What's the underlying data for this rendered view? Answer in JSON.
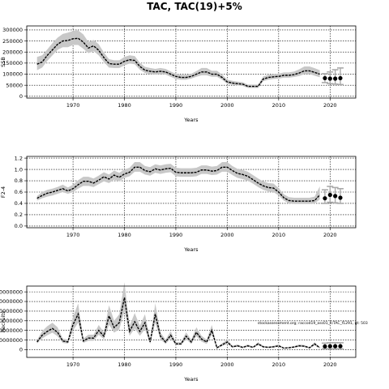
{
  "figure": {
    "title": "TAC, TAC(19)+5%",
    "annotation": "stockassessment.org; raccod19_ass01_fcTAC_f1291, gt: 503"
  },
  "colors": {
    "ribbon": "#c8c8c8",
    "line": "#000000",
    "grid": "#000000",
    "forecast_band": "#aaaaaa"
  },
  "chart_data": [
    {
      "type": "line",
      "title": "",
      "xlabel": "Years",
      "ylabel": "SSB",
      "xlim": [
        1961,
        2025
      ],
      "ylim": [
        -8000,
        318000
      ],
      "grid": true,
      "xticks": [
        1970,
        1980,
        1990,
        2000,
        2010,
        2020
      ],
      "yticks": [
        0,
        50000,
        100000,
        150000,
        200000,
        250000,
        300000
      ],
      "ytick_labels": [
        "0",
        "50000",
        "100000",
        "150000",
        "200000",
        "250000",
        "300000"
      ],
      "x": [
        1963,
        1964,
        1965,
        1966,
        1967,
        1968,
        1969,
        1970,
        1971,
        1972,
        1973,
        1974,
        1975,
        1976,
        1977,
        1978,
        1979,
        1980,
        1981,
        1982,
        1983,
        1984,
        1985,
        1986,
        1987,
        1988,
        1989,
        1990,
        1991,
        1992,
        1993,
        1994,
        1995,
        1996,
        1997,
        1998,
        1999,
        2000,
        2001,
        2002,
        2003,
        2004,
        2005,
        2006,
        2007,
        2008,
        2009,
        2010,
        2011,
        2012,
        2013,
        2014,
        2015,
        2016,
        2017,
        2018
      ],
      "estimate": [
        145000,
        155000,
        185000,
        210000,
        235000,
        250000,
        252000,
        260000,
        262000,
        245000,
        218000,
        228000,
        208000,
        175000,
        148000,
        145000,
        145000,
        158000,
        165000,
        162000,
        135000,
        118000,
        113000,
        110000,
        113000,
        110000,
        100000,
        90000,
        85000,
        85000,
        90000,
        100000,
        110000,
        110000,
        100000,
        100000,
        85000,
        65000,
        60000,
        57000,
        55000,
        45000,
        45000,
        45000,
        78000,
        85000,
        88000,
        90000,
        95000,
        95000,
        98000,
        105000,
        115000,
        115000,
        108000,
        100000
      ],
      "lower": [
        118000,
        130000,
        160000,
        185000,
        210000,
        222000,
        222000,
        232000,
        232000,
        215000,
        195000,
        205000,
        185000,
        155000,
        130000,
        128000,
        128000,
        140000,
        148000,
        145000,
        120000,
        105000,
        100000,
        98000,
        100000,
        98000,
        88000,
        78000,
        75000,
        75000,
        80000,
        88000,
        95000,
        95000,
        88000,
        88000,
        75000,
        56000,
        52000,
        49000,
        47000,
        38000,
        38000,
        38000,
        68000,
        75000,
        78000,
        80000,
        84000,
        84000,
        87000,
        92000,
        100000,
        100000,
        93000,
        86000
      ],
      "upper": [
        178000,
        185000,
        212000,
        240000,
        265000,
        282000,
        288000,
        295000,
        298000,
        280000,
        245000,
        255000,
        235000,
        198000,
        168000,
        163000,
        163000,
        178000,
        185000,
        182000,
        152000,
        133000,
        128000,
        124000,
        128000,
        124000,
        112000,
        102000,
        97000,
        97000,
        102000,
        114000,
        128000,
        128000,
        115000,
        115000,
        98000,
        75000,
        70000,
        66000,
        64000,
        53000,
        53000,
        53000,
        90000,
        97000,
        100000,
        102000,
        108000,
        108000,
        112000,
        122000,
        135000,
        135000,
        127000,
        118000
      ],
      "forecast": {
        "x": [
          2019,
          2020,
          2021,
          2022
        ],
        "median": [
          82000,
          80000,
          80000,
          82000
        ],
        "low": [
          62000,
          57000,
          55000,
          53000
        ],
        "high": [
          102000,
          110000,
          120000,
          128000
        ]
      }
    },
    {
      "type": "line",
      "title": "",
      "xlabel": "Years",
      "ylabel": "F2-4",
      "xlim": [
        1961,
        2025
      ],
      "ylim": [
        -0.03,
        1.23
      ],
      "grid": true,
      "xticks": [
        1970,
        1980,
        1990,
        2000,
        2010,
        2020
      ],
      "yticks": [
        0,
        0.2,
        0.4,
        0.6,
        0.8,
        1.0,
        1.2
      ],
      "ytick_labels": [
        "0.0",
        "0.2",
        "0.4",
        "0.6",
        "0.8",
        "1.0",
        "1.2"
      ],
      "x": [
        1963,
        1964,
        1965,
        1966,
        1967,
        1968,
        1969,
        1970,
        1971,
        1972,
        1973,
        1974,
        1975,
        1976,
        1977,
        1978,
        1979,
        1980,
        1981,
        1982,
        1983,
        1984,
        1985,
        1986,
        1987,
        1988,
        1989,
        1990,
        1991,
        1992,
        1993,
        1994,
        1995,
        1996,
        1997,
        1998,
        1999,
        2000,
        2001,
        2002,
        2003,
        2004,
        2005,
        2006,
        2007,
        2008,
        2009,
        2010,
        2011,
        2012,
        2013,
        2014,
        2015,
        2016,
        2017,
        2018
      ],
      "estimate": [
        0.49,
        0.54,
        0.58,
        0.6,
        0.63,
        0.66,
        0.62,
        0.66,
        0.73,
        0.79,
        0.79,
        0.76,
        0.81,
        0.87,
        0.83,
        0.9,
        0.86,
        0.92,
        0.95,
        1.04,
        1.04,
        0.98,
        0.96,
        1.01,
        0.99,
        1.01,
        1.02,
        0.95,
        0.94,
        0.94,
        0.94,
        0.95,
        0.99,
        0.99,
        0.97,
        0.98,
        1.04,
        1.04,
        0.98,
        0.93,
        0.91,
        0.88,
        0.82,
        0.76,
        0.71,
        0.68,
        0.67,
        0.6,
        0.5,
        0.45,
        0.44,
        0.44,
        0.44,
        0.44,
        0.45,
        0.55
      ],
      "lower": [
        0.45,
        0.49,
        0.52,
        0.54,
        0.57,
        0.6,
        0.57,
        0.6,
        0.66,
        0.71,
        0.71,
        0.69,
        0.74,
        0.79,
        0.76,
        0.82,
        0.79,
        0.85,
        0.88,
        0.96,
        0.96,
        0.91,
        0.89,
        0.94,
        0.92,
        0.94,
        0.95,
        0.88,
        0.87,
        0.87,
        0.87,
        0.88,
        0.92,
        0.92,
        0.9,
        0.91,
        0.96,
        0.96,
        0.9,
        0.85,
        0.83,
        0.8,
        0.75,
        0.69,
        0.64,
        0.61,
        0.6,
        0.54,
        0.45,
        0.4,
        0.39,
        0.39,
        0.39,
        0.39,
        0.4,
        0.47
      ],
      "upper": [
        0.53,
        0.6,
        0.64,
        0.66,
        0.69,
        0.73,
        0.68,
        0.73,
        0.81,
        0.87,
        0.87,
        0.84,
        0.89,
        0.95,
        0.91,
        0.98,
        0.94,
        1.0,
        1.03,
        1.13,
        1.13,
        1.06,
        1.04,
        1.09,
        1.07,
        1.09,
        1.1,
        1.03,
        1.02,
        1.02,
        1.02,
        1.03,
        1.07,
        1.07,
        1.05,
        1.06,
        1.13,
        1.13,
        1.06,
        1.01,
        0.99,
        0.96,
        0.9,
        0.84,
        0.79,
        0.76,
        0.75,
        0.67,
        0.56,
        0.51,
        0.5,
        0.5,
        0.5,
        0.5,
        0.52,
        0.7
      ],
      "forecast": {
        "x": [
          2019,
          2020,
          2021,
          2022
        ],
        "median": [
          0.49,
          0.55,
          0.53,
          0.5
        ],
        "low": [
          0.4,
          0.42,
          0.41,
          0.4
        ],
        "high": [
          0.64,
          0.7,
          0.68,
          0.66
        ]
      }
    },
    {
      "type": "line",
      "title": "",
      "xlabel": "Years",
      "ylabel": "Recruits",
      "xlim": [
        1961,
        2025
      ],
      "ylim": [
        -40000000,
        330000000
      ],
      "grid": true,
      "xticks": [
        1970,
        1980,
        1990,
        2000,
        2010,
        2020
      ],
      "yticks": [
        0,
        50000000,
        100000000,
        150000000,
        200000000,
        250000000,
        300000000
      ],
      "ytick_labels": [
        "0",
        "50000000",
        "100000000",
        "150000000",
        "200000000",
        "250000000",
        "300000000"
      ],
      "x": [
        1963,
        1964,
        1965,
        1966,
        1967,
        1968,
        1969,
        1970,
        1971,
        1972,
        1973,
        1974,
        1975,
        1976,
        1977,
        1978,
        1979,
        1980,
        1981,
        1982,
        1983,
        1984,
        1985,
        1986,
        1987,
        1988,
        1989,
        1990,
        1991,
        1992,
        1993,
        1994,
        1995,
        1996,
        1997,
        1998,
        1999,
        2000,
        2001,
        2002,
        2003,
        2004,
        2005,
        2006,
        2007,
        2008,
        2009,
        2010,
        2011,
        2012,
        2013,
        2014,
        2015,
        2016,
        2017,
        2018
      ],
      "estimate": [
        40000000,
        75000000,
        95000000,
        110000000,
        90000000,
        45000000,
        40000000,
        130000000,
        185000000,
        45000000,
        60000000,
        60000000,
        100000000,
        70000000,
        175000000,
        115000000,
        140000000,
        270000000,
        95000000,
        145000000,
        95000000,
        140000000,
        40000000,
        185000000,
        70000000,
        40000000,
        75000000,
        30000000,
        30000000,
        70000000,
        40000000,
        90000000,
        55000000,
        40000000,
        100000000,
        10000000,
        25000000,
        40000000,
        15000000,
        20000000,
        12000000,
        20000000,
        12000000,
        30000000,
        15000000,
        12000000,
        15000000,
        20000000,
        8000000,
        10000000,
        14000000,
        20000000,
        18000000,
        10000000,
        30000000,
        10000000
      ],
      "lower": [
        32000000,
        58000000,
        75000000,
        88000000,
        70000000,
        35000000,
        32000000,
        100000000,
        140000000,
        35000000,
        46000000,
        46000000,
        78000000,
        54000000,
        130000000,
        88000000,
        106000000,
        200000000,
        72000000,
        110000000,
        72000000,
        106000000,
        30000000,
        140000000,
        54000000,
        30000000,
        58000000,
        23000000,
        23000000,
        54000000,
        30000000,
        70000000,
        42000000,
        30000000,
        78000000,
        7000000,
        19000000,
        30000000,
        11000000,
        15000000,
        9000000,
        15000000,
        9000000,
        23000000,
        11000000,
        9000000,
        11000000,
        15000000,
        6000000,
        7000000,
        10000000,
        15000000,
        13000000,
        7000000,
        22000000,
        7000000
      ],
      "upper": [
        50000000,
        96000000,
        122000000,
        140000000,
        116000000,
        58000000,
        52000000,
        170000000,
        240000000,
        58000000,
        78000000,
        78000000,
        128000000,
        90000000,
        230000000,
        150000000,
        184000000,
        350000000,
        124000000,
        190000000,
        124000000,
        184000000,
        52000000,
        240000000,
        90000000,
        52000000,
        96000000,
        39000000,
        39000000,
        90000000,
        52000000,
        116000000,
        72000000,
        52000000,
        128000000,
        14000000,
        33000000,
        52000000,
        20000000,
        27000000,
        16000000,
        27000000,
        16000000,
        39000000,
        20000000,
        16000000,
        20000000,
        27000000,
        11000000,
        13000000,
        19000000,
        27000000,
        24000000,
        13000000,
        39000000,
        13000000
      ],
      "forecast": {
        "x": [
          2019,
          2020,
          2021,
          2022
        ],
        "median": [
          17000000,
          18000000,
          18000000,
          18000000
        ],
        "low": [
          4000000,
          4000000,
          4000000,
          4000000
        ],
        "high": [
          34000000,
          36000000,
          36000000,
          36000000
        ]
      }
    }
  ]
}
